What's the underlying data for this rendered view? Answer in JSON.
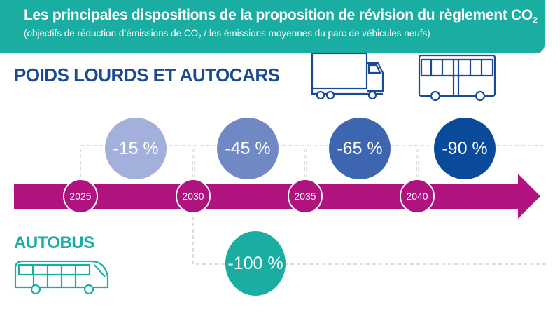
{
  "header": {
    "title": "Les principales dispositions de la proposition de révision du règlement CO",
    "title_sub": "2",
    "subtitle_a": "(objectifs de réduction d’émissions de CO",
    "subtitle_sub": "2",
    "subtitle_b": " / les émissions moyennes du parc de véhicules neufs)"
  },
  "sections": {
    "heavy": "POIDS LOURDS ET AUTOCARS",
    "bus": "AUTOBUS"
  },
  "years": [
    "2025",
    "2030",
    "2035",
    "2040"
  ],
  "heavy_targets": [
    {
      "label": "-15 %",
      "color": "#a3b0dc"
    },
    {
      "label": "-45 %",
      "color": "#7088c4"
    },
    {
      "label": "-65 %",
      "color": "#3e66b0"
    },
    {
      "label": "-90 %",
      "color": "#0a4a9a"
    }
  ],
  "bus_target": {
    "label": "-100 %",
    "color": "#1aaea3"
  },
  "colors": {
    "timeline": "#b0127e",
    "heavy": "#1a4a94",
    "bus": "#1aaea3"
  },
  "icons": [
    "truck-icon",
    "bus-icon",
    "coach-icon"
  ]
}
